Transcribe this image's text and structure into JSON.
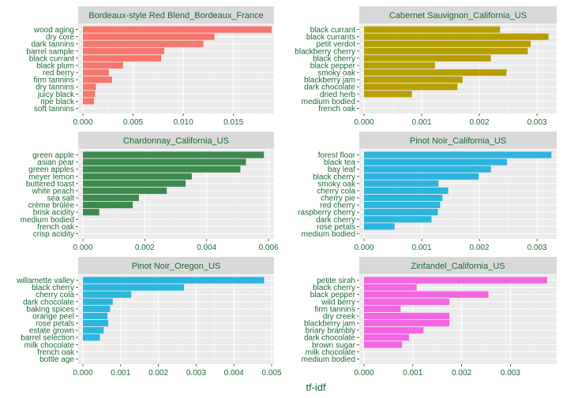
{
  "chart_data": [
    {
      "type": "bar",
      "orientation": "horizontal",
      "title": "Bordeaux-style Red Blend_Bordeaux_France",
      "color": "#F8766D",
      "categories": [
        "wood aging",
        "dry core",
        "dark tannins",
        "barrel sample",
        "black currant",
        "black plum",
        "red berry",
        "firm tannins",
        "dry tannins",
        "juicy black",
        "ripe black",
        "soft tannins"
      ],
      "values": [
        0.0188,
        0.0131,
        0.012,
        0.0081,
        0.0078,
        0.004,
        0.0026,
        0.0029,
        0.0013,
        0.0012,
        0.0011,
        0.0
      ],
      "xlim": [
        0,
        0.0188
      ],
      "ticks": [
        "0.000",
        "0.005",
        "0.010",
        "0.015"
      ],
      "tick_values": [
        0,
        0.005,
        0.01,
        0.015
      ]
    },
    {
      "type": "bar",
      "orientation": "horizontal",
      "title": "Cabernet Sauvignon_California_US",
      "color": "#B79F00",
      "categories": [
        "black currant",
        "black currants",
        "petit verdot",
        "blackberry cherry",
        "black cherry",
        "black pepper",
        "smoky oak",
        "blackberry jam",
        "dark chocolate",
        "dried herb",
        "medium bodied",
        "french oak"
      ],
      "values": [
        0.00236,
        0.0032,
        0.00289,
        0.00284,
        0.0022,
        0.00123,
        0.00247,
        0.00171,
        0.00162,
        0.00083,
        0.0,
        0.0
      ],
      "xlim": [
        0,
        0.0033
      ],
      "ticks": [
        "0.000",
        "0.001",
        "0.002",
        "0.003"
      ],
      "tick_values": [
        0,
        0.001,
        0.002,
        0.003
      ]
    },
    {
      "type": "bar",
      "orientation": "horizontal",
      "title": "Chardonnay_California_US",
      "color": "#3C8A4E",
      "categories": [
        "green apple",
        "asian pear",
        "green apples",
        "meyer lemon",
        "buttered toast",
        "white peach",
        "sea salt",
        "crème brûlée",
        "brisk acidity",
        "medium bodied",
        "french oak",
        "crisp acidity"
      ],
      "values": [
        0.00585,
        0.00527,
        0.00509,
        0.00352,
        0.00332,
        0.00271,
        0.00181,
        0.00161,
        0.00053,
        0.0,
        0.0,
        0.0
      ],
      "xlim": [
        0,
        0.0061
      ],
      "ticks": [
        "0.000",
        "0.002",
        "0.004",
        "0.006"
      ],
      "tick_values": [
        0,
        0.002,
        0.004,
        0.006
      ]
    },
    {
      "type": "bar",
      "orientation": "horizontal",
      "title": "Pinot Noir_California_US",
      "color": "#2BB5DF",
      "categories": [
        "forest floor",
        "black tea",
        "bay leaf",
        "black cherry",
        "smoky oak",
        "cherry cola",
        "cherry pie",
        "red cherry",
        "raspberry cherry",
        "dark cherry",
        "rose petals",
        "medium bodied"
      ],
      "values": [
        0.00325,
        0.00248,
        0.0022,
        0.00199,
        0.00129,
        0.00146,
        0.00136,
        0.00132,
        0.00128,
        0.00117,
        0.00053,
        0.0
      ],
      "xlim": [
        0,
        0.0033
      ],
      "ticks": [
        "0.000",
        "0.001",
        "0.002",
        "0.003"
      ],
      "tick_values": [
        0,
        0.001,
        0.002,
        0.003
      ]
    },
    {
      "type": "bar",
      "orientation": "horizontal",
      "title": "Pinot Noir_Oregon_US",
      "color": "#2BB5DF",
      "categories": [
        "willamette valley",
        "black cherry",
        "cherry cola",
        "dark chocolate",
        "baking spices",
        "orange peel",
        "rose petals",
        "estate grown",
        "barrel selection",
        "milk chocolate",
        "french oak",
        "bottle age"
      ],
      "values": [
        0.0048,
        0.00268,
        0.00128,
        0.00079,
        0.00072,
        0.00065,
        0.00067,
        0.00055,
        0.00045,
        0.0,
        0.0,
        0.0
      ],
      "xlim": [
        0,
        0.005
      ],
      "ticks": [
        "0.000",
        "0.001",
        "0.002",
        "0.003",
        "0.004",
        "0.005"
      ],
      "tick_values": [
        0,
        0.001,
        0.002,
        0.003,
        0.004,
        0.005
      ]
    },
    {
      "type": "bar",
      "orientation": "horizontal",
      "title": "Zinfandel_California_US",
      "color": "#F564E3",
      "categories": [
        "petite sirah",
        "black cherry",
        "black pepper",
        "wild berry",
        "firm tannins",
        "dry creek",
        "blackberry jam",
        "briary brambly",
        "dark chocolate",
        "brown sugar",
        "milk chocolate",
        "medium bodied"
      ],
      "values": [
        0.00375,
        0.00108,
        0.00255,
        0.00175,
        0.00075,
        0.00175,
        0.00175,
        0.00122,
        0.00092,
        0.00078,
        0.0,
        0.0
      ],
      "xlim": [
        0,
        0.0039
      ],
      "ticks": [
        "0.000",
        "0.001",
        "0.002",
        "0.003"
      ],
      "tick_values": [
        0,
        0.001,
        0.002,
        0.003
      ]
    }
  ],
  "xlabel": "tf-idf",
  "grid": true,
  "panel_background": "#EBEBEB",
  "strip_background": "#D9D9D9",
  "gridline_color": "#FFFFFF",
  "text_color": "#1a6b33"
}
